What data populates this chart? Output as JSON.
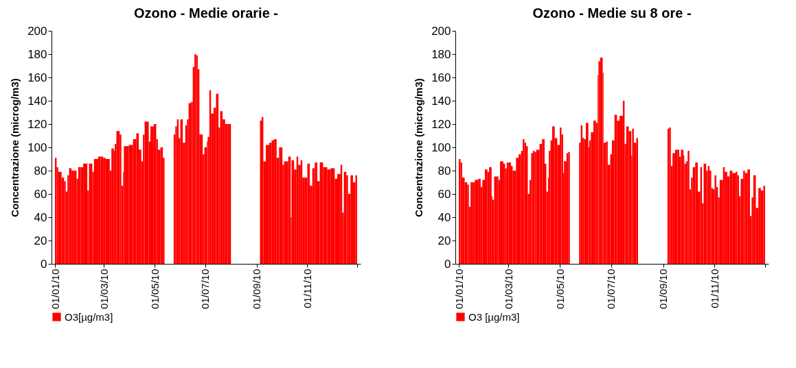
{
  "chart_data": [
    {
      "type": "bar",
      "title": "Ozono - Medie orarie -",
      "ylabel": "Concentrazione (microg/m3)",
      "x": [
        "2010-01-01",
        "2010-01-03",
        "2010-01-05",
        "2010-01-09",
        "2010-01-12",
        "2010-01-14",
        "2010-01-16",
        "2010-01-18",
        "2010-01-21",
        "2010-01-24",
        "2010-01-27",
        "2010-01-29",
        "2010-02-01",
        "2010-02-04",
        "2010-02-09",
        "2010-02-11",
        "2010-02-15",
        "2010-02-17",
        "2010-02-22",
        "2010-02-25",
        "2010-02-28",
        "2010-03-03",
        "2010-03-08",
        "2010-03-10",
        "2010-03-13",
        "2010-03-14",
        "2010-03-16",
        "2010-03-20",
        "2010-03-22",
        "2010-03-24",
        "2010-03-25",
        "2010-03-28",
        "2010-03-31",
        "2010-04-05",
        "2010-04-09",
        "2010-04-12",
        "2010-04-15",
        "2010-04-17",
        "2010-04-19",
        "2010-04-24",
        "2010-04-26",
        "2010-04-30",
        "2010-05-03",
        "2010-05-05",
        "2010-05-08",
        "2010-05-11",
        "2010-05-13",
        "2010-05-24",
        "2010-05-26",
        "2010-05-28",
        "2010-05-30",
        "2010-06-01",
        "2010-06-04",
        "2010-06-07",
        "2010-06-09",
        "2010-06-11",
        "2010-06-14",
        "2010-06-16",
        "2010-06-18",
        "2010-06-20",
        "2010-06-22",
        "2010-06-24",
        "2010-06-28",
        "2010-06-30",
        "2010-07-03",
        "2010-07-04",
        "2010-07-06",
        "2010-07-08",
        "2010-07-11",
        "2010-07-14",
        "2010-07-17",
        "2010-07-19",
        "2010-07-22",
        "2010-07-25",
        "2010-07-28",
        "2010-08-01",
        "2010-09-05",
        "2010-09-07",
        "2010-09-09",
        "2010-09-12",
        "2010-09-16",
        "2010-09-19",
        "2010-09-22",
        "2010-09-25",
        "2010-09-28",
        "2010-10-02",
        "2010-10-04",
        "2010-10-09",
        "2010-10-12",
        "2010-10-13",
        "2010-10-16",
        "2010-10-19",
        "2010-10-21",
        "2010-10-24",
        "2010-10-26",
        "2010-10-29",
        "2010-11-01",
        "2010-11-04",
        "2010-11-07",
        "2010-11-10",
        "2010-11-13",
        "2010-11-16",
        "2010-11-20",
        "2010-11-25",
        "2010-11-29",
        "2010-12-04",
        "2010-12-07",
        "2010-12-11",
        "2010-12-13",
        "2010-12-15",
        "2010-12-18",
        "2010-12-20",
        "2010-12-23",
        "2010-12-26",
        "2010-12-29"
      ],
      "series": [
        {
          "name": "O3[µg/m3]",
          "color": "#ff0000",
          "values": [
            91,
            83,
            79,
            74,
            71,
            62,
            76,
            82,
            80,
            80,
            73,
            83,
            83,
            86,
            63,
            86,
            79,
            90,
            92,
            92,
            91,
            90,
            80,
            99,
            97,
            103,
            114,
            111,
            67,
            79,
            101,
            101,
            102,
            107,
            112,
            98,
            88,
            111,
            122,
            105,
            118,
            120,
            107,
            98,
            100,
            91,
            null,
            111,
            118,
            124,
            108,
            124,
            104,
            119,
            124,
            138,
            139,
            169,
            180,
            179,
            167,
            111,
            94,
            100,
            105,
            109,
            149,
            129,
            134,
            146,
            117,
            131,
            124,
            120,
            120,
            null,
            123,
            126,
            88,
            102,
            104,
            106,
            107,
            91,
            100,
            85,
            88,
            92,
            40,
            89,
            81,
            92,
            85,
            89,
            74,
            74,
            86,
            67,
            82,
            87,
            71,
            87,
            83,
            81,
            82,
            73,
            77,
            85,
            44,
            79,
            76,
            60,
            76,
            70,
            76
          ]
        }
      ],
      "xlim": [
        "2010-01-01",
        "2010-12-31"
      ],
      "ylim": [
        0,
        200
      ],
      "yticks": [
        0,
        20,
        40,
        60,
        80,
        100,
        120,
        140,
        160,
        180,
        200
      ],
      "xticks": [
        {
          "value": "2010-01-01",
          "label": "01/01/10"
        },
        {
          "value": "2010-03-01",
          "label": "01/03/10"
        },
        {
          "value": "2010-05-01",
          "label": "01/05/10"
        },
        {
          "value": "2010-07-01",
          "label": "01/07/10"
        },
        {
          "value": "2010-09-01",
          "label": "01/09/10"
        },
        {
          "value": "2010-11-01",
          "label": "01/11/10"
        },
        {
          "value": "2010-12-31",
          "label": null
        }
      ],
      "legend": "bottom"
    },
    {
      "type": "bar",
      "title": "Ozono - Medie su 8 ore -",
      "ylabel": "Concentrazione (microg/m3)",
      "x": [
        "2010-01-01",
        "2010-01-03",
        "2010-01-05",
        "2010-01-08",
        "2010-01-11",
        "2010-01-13",
        "2010-01-15",
        "2010-01-18",
        "2010-01-20",
        "2010-01-24",
        "2010-01-27",
        "2010-01-29",
        "2010-02-01",
        "2010-02-04",
        "2010-02-06",
        "2010-02-09",
        "2010-02-10",
        "2010-02-12",
        "2010-02-15",
        "2010-02-17",
        "2010-02-19",
        "2010-02-23",
        "2010-02-25",
        "2010-02-27",
        "2010-03-01",
        "2010-03-04",
        "2010-03-06",
        "2010-03-10",
        "2010-03-13",
        "2010-03-16",
        "2010-03-18",
        "2010-03-20",
        "2010-03-22",
        "2010-03-24",
        "2010-03-26",
        "2010-03-28",
        "2010-03-30",
        "2010-04-01",
        "2010-04-03",
        "2010-04-07",
        "2010-04-10",
        "2010-04-13",
        "2010-04-15",
        "2010-04-17",
        "2010-04-18",
        "2010-04-20",
        "2010-04-22",
        "2010-04-25",
        "2010-04-28",
        "2010-05-01",
        "2010-05-03",
        "2010-05-05",
        "2010-05-06",
        "2010-05-09",
        "2010-05-11",
        "2010-05-13",
        "2010-05-24",
        "2010-05-26",
        "2010-05-28",
        "2010-05-30",
        "2010-06-01",
        "2010-06-04",
        "2010-06-05",
        "2010-06-07",
        "2010-06-10",
        "2010-06-13",
        "2010-06-15",
        "2010-06-16",
        "2010-06-18",
        "2010-06-21",
        "2010-06-22",
        "2010-06-25",
        "2010-06-27",
        "2010-06-30",
        "2010-07-02",
        "2010-07-05",
        "2010-07-08",
        "2010-07-11",
        "2010-07-15",
        "2010-07-17",
        "2010-07-19",
        "2010-07-22",
        "2010-07-25",
        "2010-07-26",
        "2010-07-28",
        "2010-07-31",
        "2010-08-02",
        "2010-09-06",
        "2010-09-08",
        "2010-09-10",
        "2010-09-12",
        "2010-09-15",
        "2010-09-18",
        "2010-09-20",
        "2010-09-22",
        "2010-09-25",
        "2010-09-26",
        "2010-09-28",
        "2010-09-30",
        "2010-10-02",
        "2010-10-04",
        "2010-10-06",
        "2010-10-09",
        "2010-10-12",
        "2010-10-15",
        "2010-10-17",
        "2010-10-19",
        "2010-10-22",
        "2010-10-24",
        "2010-10-26",
        "2010-10-28",
        "2010-10-30",
        "2010-11-01",
        "2010-11-03",
        "2010-11-05",
        "2010-11-07",
        "2010-11-11",
        "2010-11-13",
        "2010-11-16",
        "2010-11-19",
        "2010-11-22",
        "2010-11-26",
        "2010-11-28",
        "2010-11-30",
        "2010-12-02",
        "2010-12-05",
        "2010-12-07",
        "2010-12-10",
        "2010-12-13",
        "2010-12-15",
        "2010-12-17",
        "2010-12-20",
        "2010-12-23",
        "2010-12-26",
        "2010-12-29"
      ],
      "series": [
        {
          "name": "O3  [µg/m3]",
          "color": "#ff0000",
          "values": [
            90,
            87,
            74,
            70,
            68,
            49,
            70,
            70,
            72,
            73,
            66,
            72,
            81,
            79,
            83,
            58,
            55,
            75,
            75,
            72,
            88,
            86,
            82,
            87,
            87,
            84,
            80,
            91,
            94,
            97,
            107,
            104,
            101,
            60,
            72,
            95,
            97,
            96,
            98,
            103,
            107,
            86,
            62,
            74,
            97,
            106,
            118,
            108,
            102,
            117,
            111,
            78,
            88,
            95,
            96,
            null,
            104,
            119,
            108,
            107,
            121,
            100,
            106,
            113,
            123,
            121,
            162,
            174,
            177,
            164,
            104,
            105,
            85,
            94,
            106,
            128,
            123,
            127,
            140,
            103,
            118,
            114,
            93,
            116,
            104,
            108,
            null,
            116,
            117,
            84,
            95,
            98,
            98,
            92,
            98,
            93,
            86,
            88,
            97,
            64,
            74,
            83,
            87,
            62,
            83,
            52,
            86,
            80,
            84,
            80,
            65,
            64,
            76,
            66,
            57,
            72,
            83,
            79,
            75,
            80,
            78,
            79,
            76,
            58,
            73,
            80,
            78,
            81,
            41,
            57,
            76,
            48,
            65,
            63,
            67
          ]
        }
      ],
      "xlim": [
        "2010-01-01",
        "2010-12-31"
      ],
      "ylim": [
        0,
        200
      ],
      "yticks": [
        0,
        20,
        40,
        60,
        80,
        100,
        120,
        140,
        160,
        180,
        200
      ],
      "xticks": [
        {
          "value": "2010-01-01",
          "label": "01/01/10"
        },
        {
          "value": "2010-03-01",
          "label": "01/03/10"
        },
        {
          "value": "2010-05-01",
          "label": "01/05/10"
        },
        {
          "value": "2010-07-01",
          "label": "01/07/10"
        },
        {
          "value": "2010-09-01",
          "label": "01/09/10"
        },
        {
          "value": "2010-11-01",
          "label": "01/11/10"
        },
        {
          "value": "2010-12-31",
          "label": null
        }
      ],
      "legend": "bottom"
    }
  ]
}
